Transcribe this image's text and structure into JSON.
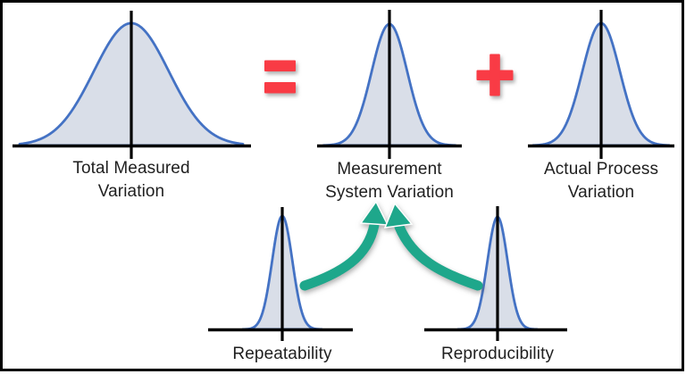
{
  "diagram": {
    "equation_row": {
      "total_variation": {
        "label_line1": "Total Measured",
        "label_line2": "Variation"
      },
      "equals_symbol": "=",
      "measurement_system_variation": {
        "label_line1": "Measurement",
        "label_line2": "System Variation"
      },
      "plus_symbol": "+",
      "actual_process_variation": {
        "label_line1": "Actual Process",
        "label_line2": "Variation"
      }
    },
    "components_row": {
      "repeatability": {
        "label": "Repeatability"
      },
      "reproducibility": {
        "label": "Reproducibility"
      }
    }
  },
  "colors": {
    "curve_stroke_blue": "#4472C4",
    "curve_fill": "#D9DEE8",
    "operator_red": "#F93B45",
    "arrow_teal": "#1EA78B",
    "ink_black": "#1F1F1F",
    "border_black": "#000000",
    "background": "#FFFFFF"
  }
}
